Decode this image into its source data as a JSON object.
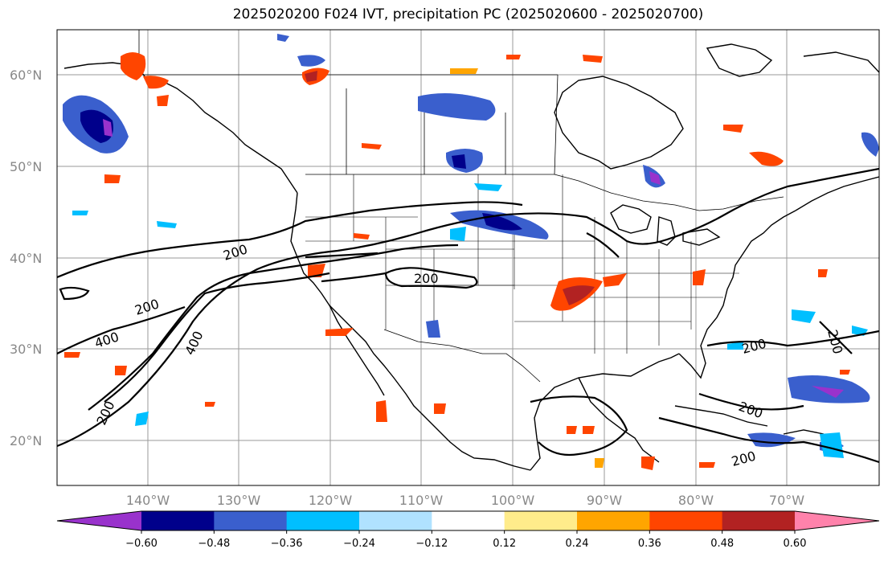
{
  "title": "2025020200 F024 IVT, precipitation PC (2025020600 - 2025020700)",
  "latitude_labels": [
    "60°N",
    "50°N",
    "40°N",
    "30°N",
    "20°N"
  ],
  "longitude_labels": [
    "140°W",
    "130°W",
    "120°W",
    "110°W",
    "100°W",
    "90°W",
    "80°W",
    "70°W"
  ],
  "contour_labels": [
    "200",
    "200",
    "200",
    "400",
    "400",
    "200",
    "200",
    "200",
    "200",
    "200"
  ],
  "colorbar": {
    "tick_labels": [
      "−0.60",
      "−0.48",
      "−0.36",
      "−0.24",
      "−0.12",
      "0.12",
      "0.24",
      "0.36",
      "0.48",
      "0.60"
    ],
    "colors": [
      "#9932cc",
      "#00008b",
      "#3a5fcd",
      "#00bfff",
      "#b0e2ff",
      "#ffffff",
      "#ffec8b",
      "#ffa500",
      "#ff4500",
      "#b22222",
      "#ff82ab"
    ]
  },
  "colors": {
    "ivt_contour": "#000000",
    "coast": "#000000",
    "grid": "#9a9a9a",
    "axis_label": "#888888"
  }
}
